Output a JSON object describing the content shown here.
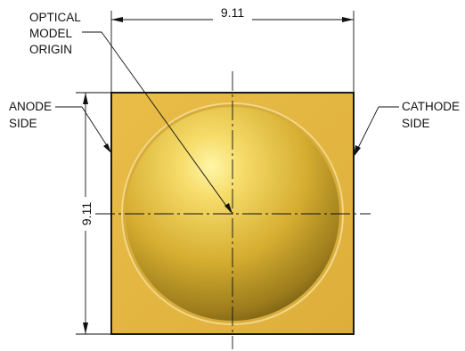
{
  "dimensions": {
    "width": "9.11",
    "height": "9.11"
  },
  "labels": {
    "optical_origin": [
      "OPTICAL",
      "MODEL",
      "ORIGIN"
    ],
    "anode": [
      "ANODE",
      "SIDE"
    ],
    "cathode": [
      "CATHODE",
      "SIDE"
    ]
  },
  "colors": {
    "package": "#e3b43f",
    "package_edge": "#1a1a1a",
    "dome_light": "#fff6a8",
    "dome_mid": "#d4aa2c",
    "dome_dark": "#6a5410"
  }
}
